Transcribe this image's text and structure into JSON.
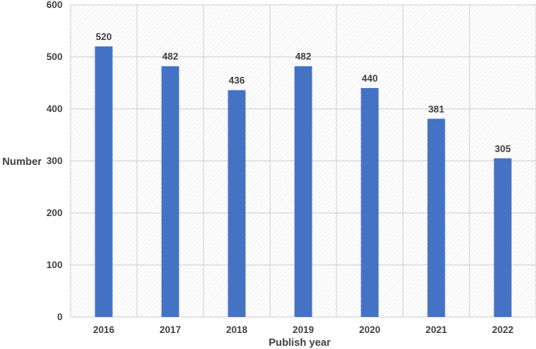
{
  "chart_data": {
    "type": "bar",
    "categories": [
      "2016",
      "2017",
      "2018",
      "2019",
      "2020",
      "2021",
      "2022"
    ],
    "series": [
      {
        "values": [
          520,
          482,
          436,
          482,
          440,
          381,
          305
        ]
      }
    ],
    "xlabel": "Publish year",
    "ylabel": "Number",
    "ylim": [
      0,
      600
    ],
    "yticks": [
      "0",
      "100",
      "200",
      "300",
      "400",
      "500",
      "600"
    ],
    "data_labels": true,
    "grid": true,
    "legend": "none",
    "bar_color": "#4472C4",
    "background_pattern": "diagonal hatch (light gray)"
  }
}
